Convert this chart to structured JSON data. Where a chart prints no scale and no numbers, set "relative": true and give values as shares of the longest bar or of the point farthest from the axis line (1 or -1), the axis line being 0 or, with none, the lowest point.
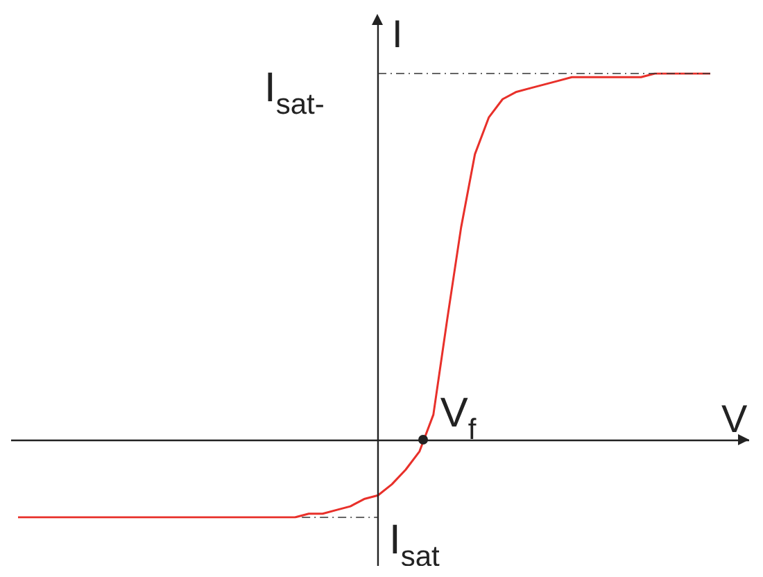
{
  "chart_data": {
    "type": "line",
    "relative": true,
    "xlabel": "V",
    "ylabel": "I",
    "categories": [
      null,
      null,
      null,
      null,
      null,
      null,
      null,
      null,
      null,
      null,
      null,
      null,
      null,
      null,
      null,
      null,
      null,
      null,
      null,
      null,
      null,
      null,
      null,
      null,
      null,
      null,
      null,
      null,
      null,
      null,
      null,
      null,
      null,
      null,
      null,
      null,
      null,
      null,
      null,
      null,
      null,
      null,
      null,
      null,
      null,
      null,
      null,
      null,
      null,
      null,
      null
    ],
    "series": [
      {
        "color": "#e8302a",
        "values": [
          -0.21,
          -0.21,
          -0.21,
          -0.21,
          -0.21,
          -0.21,
          -0.21,
          -0.21,
          -0.21,
          -0.21,
          -0.21,
          -0.21,
          -0.21,
          -0.21,
          -0.21,
          -0.21,
          -0.21,
          -0.21,
          -0.21,
          -0.21,
          -0.21,
          -0.2,
          -0.2,
          -0.19,
          -0.18,
          -0.16,
          -0.15,
          -0.12,
          -0.08,
          -0.03,
          0.07,
          0.33,
          0.58,
          0.78,
          0.88,
          0.93,
          0.95,
          0.96,
          0.97,
          0.98,
          0.99,
          0.99,
          0.99,
          0.99,
          0.99,
          0.99,
          1,
          1,
          1,
          1,
          1
        ]
      }
    ],
    "ref_lines": [
      {
        "axis": "y",
        "value": 1,
        "label": "I$_{sat-}$",
        "line_style": "dashed",
        "color": "#333333"
      },
      {
        "axis": "y",
        "value": -0.21,
        "label": "I$_{sat}$",
        "line_style": "dashed",
        "color": "#333333"
      }
    ],
    "annotations": [
      "V$_{f}$"
    ],
    "marker": "none",
    "line_style": "solid",
    "legend": false
  }
}
